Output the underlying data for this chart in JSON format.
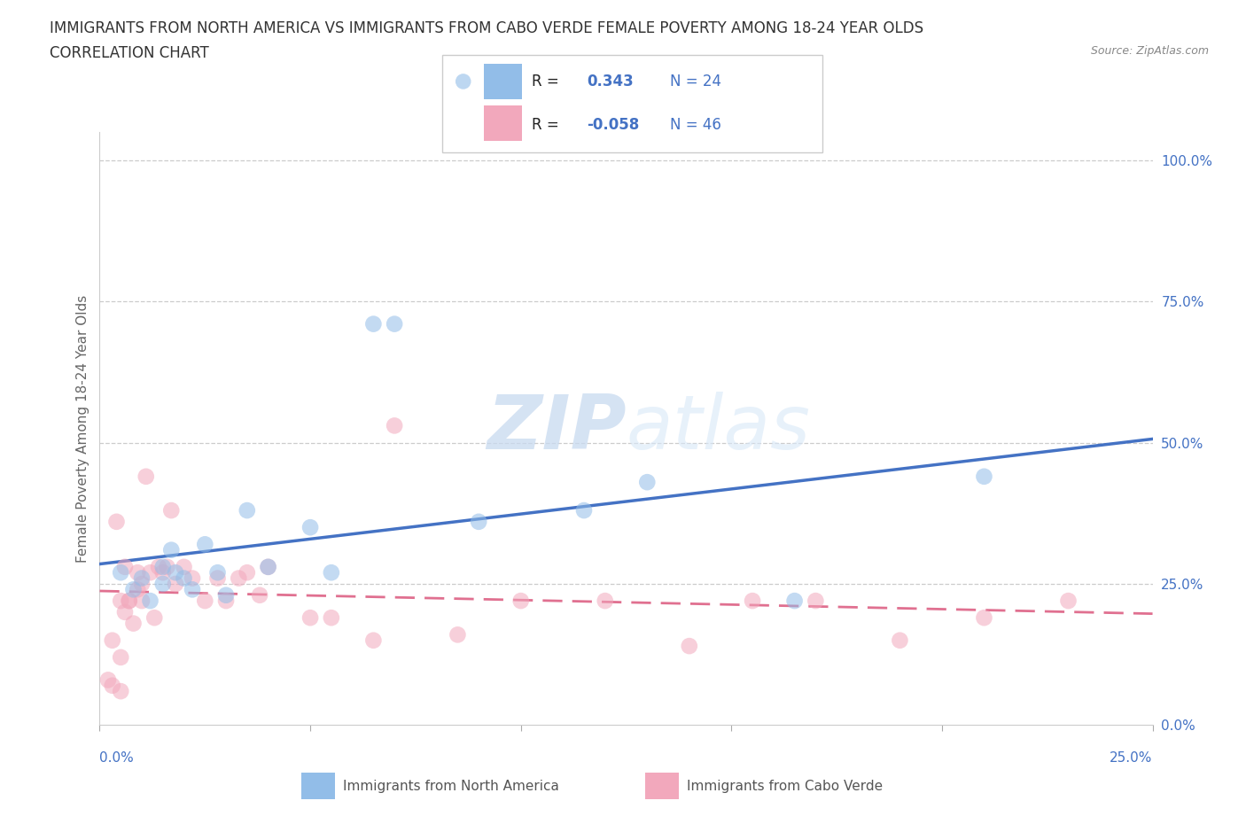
{
  "title_line1": "IMMIGRANTS FROM NORTH AMERICA VS IMMIGRANTS FROM CABO VERDE FEMALE POVERTY AMONG 18-24 YEAR OLDS",
  "title_line2": "CORRELATION CHART",
  "source": "Source: ZipAtlas.com",
  "ylabel": "Female Poverty Among 18-24 Year Olds",
  "legend_blue_r": "0.343",
  "legend_blue_n": "24",
  "legend_pink_r": "-0.058",
  "legend_pink_n": "46",
  "legend_blue_label": "Immigrants from North America",
  "legend_pink_label": "Immigrants from Cabo Verde",
  "color_blue": "#92bde8",
  "color_pink": "#f2a8bc",
  "color_blue_line": "#4472c4",
  "color_pink_line": "#e07090",
  "color_blue_text": "#4472c4",
  "color_axis": "#aaaaaa",
  "watermark_zip": "ZIP",
  "watermark_atlas": "atlas",
  "xlim": [
    0.0,
    0.25
  ],
  "ylim": [
    0.0,
    1.05
  ],
  "blue_x": [
    0.005,
    0.008,
    0.01,
    0.012,
    0.015,
    0.015,
    0.017,
    0.018,
    0.02,
    0.022,
    0.025,
    0.028,
    0.03,
    0.035,
    0.04,
    0.05,
    0.055,
    0.065,
    0.07,
    0.09,
    0.115,
    0.13,
    0.165,
    0.21
  ],
  "blue_y": [
    0.27,
    0.24,
    0.26,
    0.22,
    0.28,
    0.25,
    0.31,
    0.27,
    0.26,
    0.24,
    0.32,
    0.27,
    0.23,
    0.38,
    0.28,
    0.35,
    0.27,
    0.71,
    0.71,
    0.36,
    0.38,
    0.43,
    0.22,
    0.44
  ],
  "pink_x": [
    0.002,
    0.003,
    0.003,
    0.004,
    0.005,
    0.005,
    0.006,
    0.007,
    0.008,
    0.009,
    0.01,
    0.01,
    0.011,
    0.012,
    0.013,
    0.014,
    0.015,
    0.016,
    0.017,
    0.018,
    0.02,
    0.022,
    0.025,
    0.028,
    0.03,
    0.033,
    0.035,
    0.038,
    0.04,
    0.05,
    0.055,
    0.065,
    0.07,
    0.085,
    0.1,
    0.12,
    0.14,
    0.155,
    0.17,
    0.19,
    0.21,
    0.23,
    0.005,
    0.006,
    0.007,
    0.009
  ],
  "pink_y": [
    0.08,
    0.15,
    0.07,
    0.36,
    0.06,
    0.12,
    0.2,
    0.22,
    0.18,
    0.27,
    0.25,
    0.22,
    0.44,
    0.27,
    0.19,
    0.28,
    0.27,
    0.28,
    0.38,
    0.25,
    0.28,
    0.26,
    0.22,
    0.26,
    0.22,
    0.26,
    0.27,
    0.23,
    0.28,
    0.19,
    0.19,
    0.15,
    0.53,
    0.16,
    0.22,
    0.22,
    0.14,
    0.22,
    0.22,
    0.15,
    0.19,
    0.22,
    0.22,
    0.28,
    0.22,
    0.24
  ]
}
